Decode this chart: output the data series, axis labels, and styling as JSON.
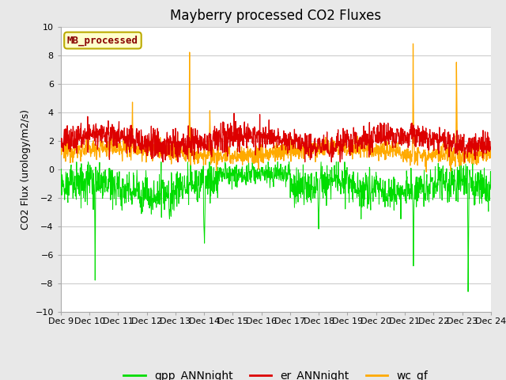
{
  "title": "Mayberry processed CO2 Fluxes",
  "ylabel": "CO2 Flux (urology/m2/s)",
  "ylim": [
    -10,
    10
  ],
  "yticks": [
    -10,
    -8,
    -6,
    -4,
    -2,
    0,
    2,
    4,
    6,
    8,
    10
  ],
  "xtick_labels": [
    "Dec 9",
    "Dec 10",
    "Dec 11",
    "Dec 12",
    "Dec 13",
    "Dec 14",
    "Dec 15",
    "Dec 16",
    "Dec 17",
    "Dec 18",
    "Dec 19",
    "Dec 20",
    "Dec 21",
    "Dec 22",
    "Dec 23",
    "Dec 24"
  ],
  "legend_label_box": "MB_processed",
  "legend_box_facecolor": "#ffffcc",
  "legend_box_edgecolor": "#bbaa00",
  "legend_box_textcolor": "#880000",
  "colors": {
    "gpp_ANNnight": "#00dd00",
    "er_ANNnight": "#dd0000",
    "wc_gf": "#ffaa00"
  },
  "n_points": 1440,
  "bg_color": "#e8e8e8",
  "plot_bg_color": "#ffffff",
  "title_fontsize": 12,
  "axis_fontsize": 9,
  "tick_fontsize": 8,
  "legend_fontsize": 10
}
